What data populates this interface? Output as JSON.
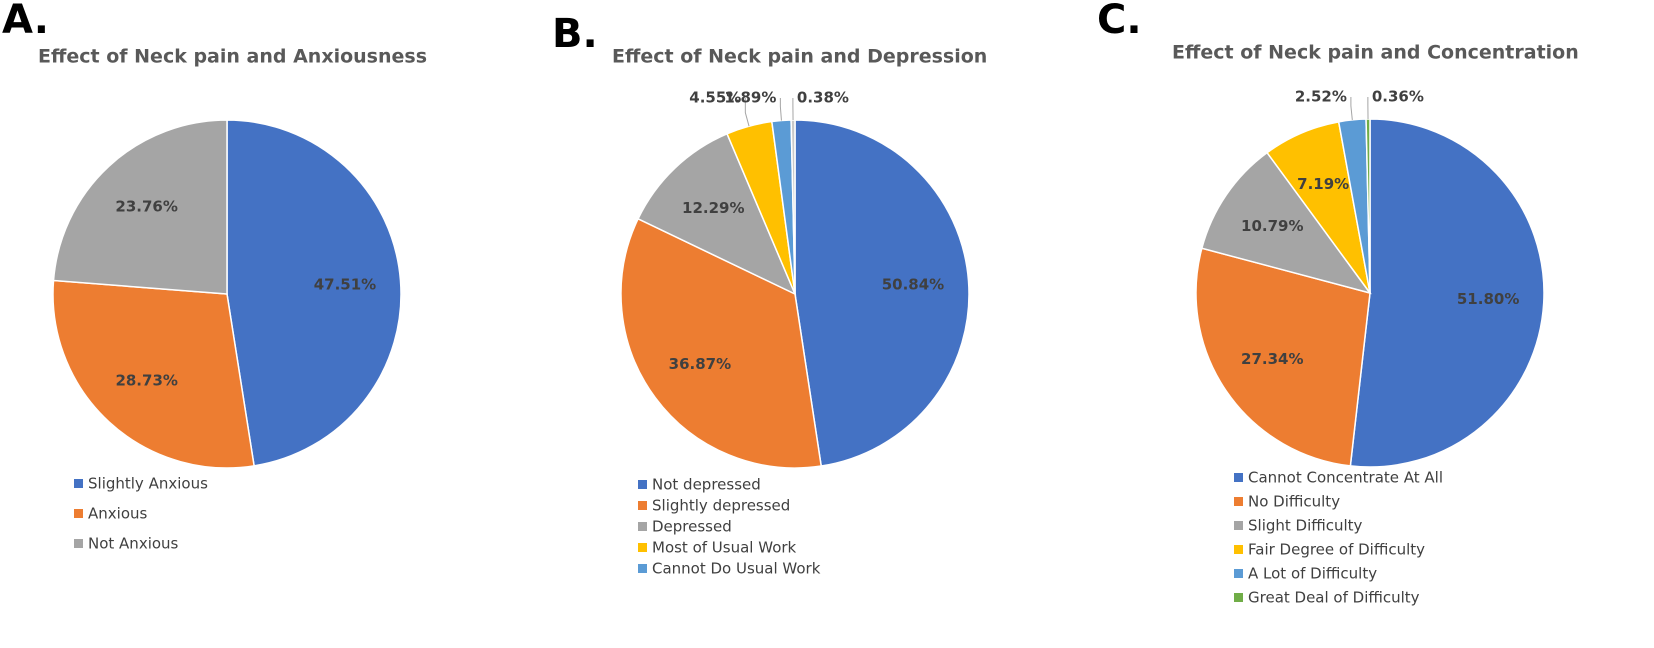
{
  "chart_data": [
    {
      "type": "pie",
      "panel": "A.",
      "title": "Effect of Neck pain and Anxiousness",
      "categories": [
        "Slightly Anxious",
        "Anxious",
        "Not Anxious"
      ],
      "values": [
        47.51,
        28.73,
        23.76
      ],
      "value_labels": [
        "47.51%",
        "28.73%",
        "23.76%"
      ],
      "colors": [
        "#4472c4",
        "#ed7d31",
        "#a5a5a5"
      ],
      "legend": "bottom"
    },
    {
      "type": "pie",
      "panel": "B.",
      "title": "Effect of Neck pain and Depression",
      "categories": [
        "Not depressed",
        "Slightly depressed",
        "Depressed",
        "Most of Usual Work",
        "Cannot Do Usual Work",
        null
      ],
      "values": [
        50.84,
        36.87,
        12.29,
        4.55,
        1.89,
        0.38
      ],
      "value_labels": [
        "50.84%",
        "36.87%",
        "12.29%",
        "4.55%",
        "1.89%",
        "0.38%"
      ],
      "colors": [
        "#4472c4",
        "#ed7d31",
        "#a5a5a5",
        "#ffc000",
        "#5b9bd5",
        "#c9c9c9"
      ],
      "legend": "bottom"
    },
    {
      "type": "pie",
      "panel": "C.",
      "title": "Effect of Neck pain and Concentration",
      "categories": [
        "Cannot Concentrate At All",
        "No Difficulty",
        "Slight Difficulty",
        "Fair Degree of Difficulty",
        "A Lot of Difficulty",
        "Great Deal of Difficulty"
      ],
      "values": [
        51.8,
        27.34,
        10.79,
        7.19,
        2.52,
        0.36
      ],
      "value_labels": [
        "51.80%",
        "27.34%",
        "10.79%",
        "7.19%",
        "2.52%",
        "0.36%"
      ],
      "colors": [
        "#4472c4",
        "#ed7d31",
        "#a5a5a5",
        "#ffc000",
        "#5b9bd5",
        "#70ad47"
      ],
      "legend": "bottom"
    }
  ]
}
